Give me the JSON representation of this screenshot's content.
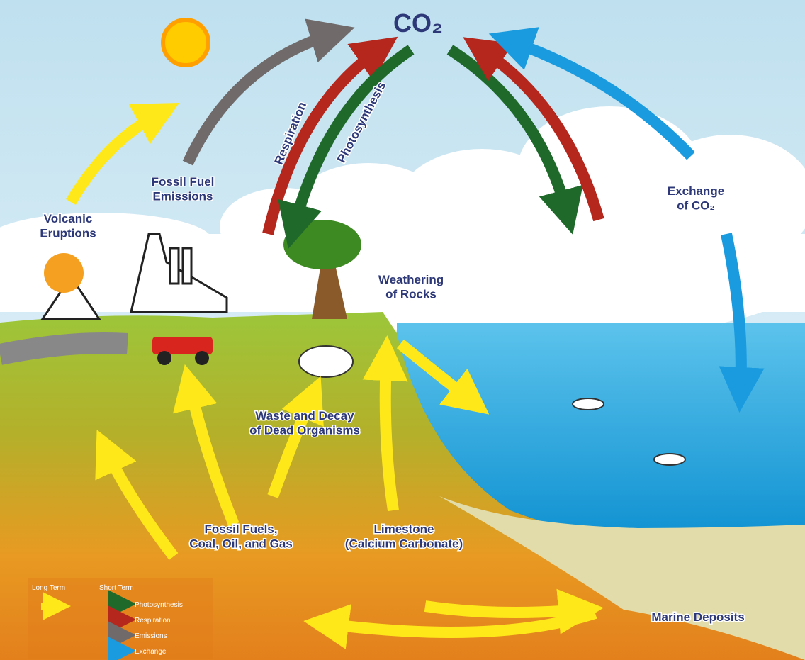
{
  "title": "CO₂",
  "labels": [
    {
      "lines": [
        "Respiration"
      ]
    },
    {
      "lines": [
        "Photosynthesis"
      ]
    },
    {
      "lines": [
        "Fossil Fuel",
        "Emissions"
      ]
    },
    {
      "lines": [
        "Volcanic",
        "Eruptions"
      ]
    },
    {
      "lines": [
        "Exchange",
        "of CO₂"
      ]
    },
    {
      "lines": [
        "Weathering",
        "of Rocks"
      ]
    },
    {
      "lines": [
        "Waste and Decay",
        "of Dead Organisms"
      ]
    },
    {
      "lines": [
        "Fossil Fuels,",
        "Coal, Oil, and Gas"
      ]
    },
    {
      "lines": [
        "Limestone",
        "(Calcium Carbonate)"
      ]
    },
    {
      "lines": [
        "Marine Deposits"
      ]
    }
  ],
  "legend": {
    "long_term": "Long Term",
    "short_term": "Short Term",
    "items": [
      "Photosynthesis",
      "Respiration",
      "Emissions",
      "Exchange"
    ]
  }
}
